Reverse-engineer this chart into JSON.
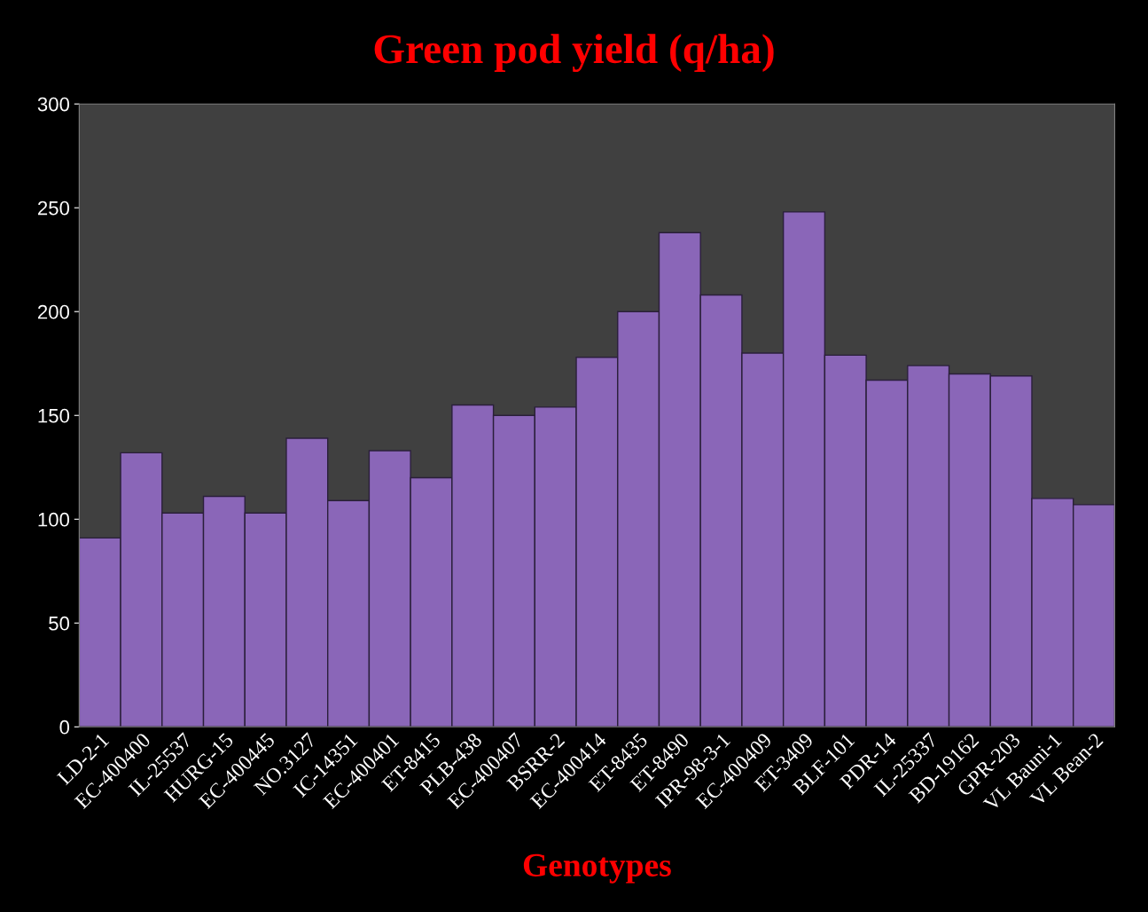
{
  "chart_data": {
    "type": "bar",
    "title": "Green pod yield (q/ha)",
    "xlabel": "Genotypes",
    "categories": [
      "LD-2-1",
      "EC-400400",
      "IL-25537",
      "HURG-15",
      "EC-400445",
      "NO.3127",
      "IC-14351",
      "EC-400401",
      "ET-8415",
      "PLB-438",
      "EC-400407",
      "BSRR-2",
      "EC-400414",
      "ET-8435",
      "ET-8490",
      "IPR-98-3-1",
      "EC-400409",
      "ET-3409",
      "BLF-101",
      "PDR-14",
      "IL-25337",
      "BD-19162",
      "GPR-203",
      "VL Bauni-1",
      "VL Bean-2"
    ],
    "values": [
      91,
      132,
      103,
      111,
      103,
      139,
      109,
      133,
      120,
      155,
      150,
      154,
      178,
      200,
      238,
      208,
      180,
      248,
      179,
      167,
      174,
      170,
      169,
      110,
      107
    ],
    "color": "#8a66b8",
    "ylim": [
      0,
      300
    ],
    "yticks": [
      0,
      50,
      100,
      150,
      200,
      250,
      300
    ],
    "grid": false
  }
}
